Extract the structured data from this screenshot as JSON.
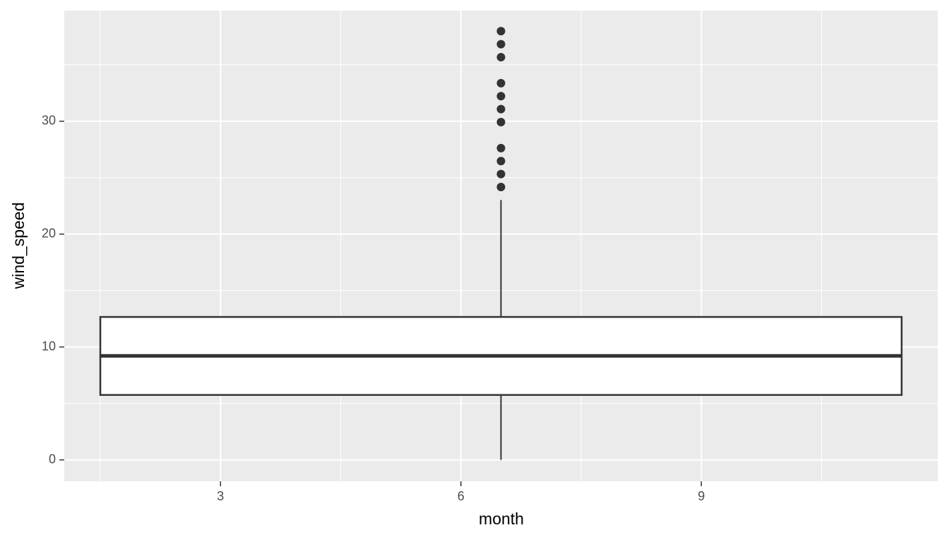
{
  "chart_data": {
    "type": "box",
    "x_label": "month",
    "y_label": "wind_speed",
    "xlim": [
      1.05,
      11.95
    ],
    "ylim": [
      -1.9,
      39.8
    ],
    "xticks": [
      3,
      6,
      9
    ],
    "yticks": [
      0,
      10,
      20,
      30
    ],
    "xminor": [
      1.5,
      4.5,
      7.5,
      10.5
    ],
    "yminor": [
      5,
      15,
      25,
      35
    ],
    "grid": true,
    "boxes": [
      {
        "x": 6.5,
        "width": 10,
        "min": 0,
        "q1": 5.75,
        "median": 9.21,
        "q3": 12.66,
        "max": 23.02,
        "outliers": [
          24.17,
          25.32,
          26.47,
          27.62,
          29.92,
          31.07,
          32.22,
          33.37,
          35.67,
          36.82,
          37.98
        ]
      }
    ]
  }
}
